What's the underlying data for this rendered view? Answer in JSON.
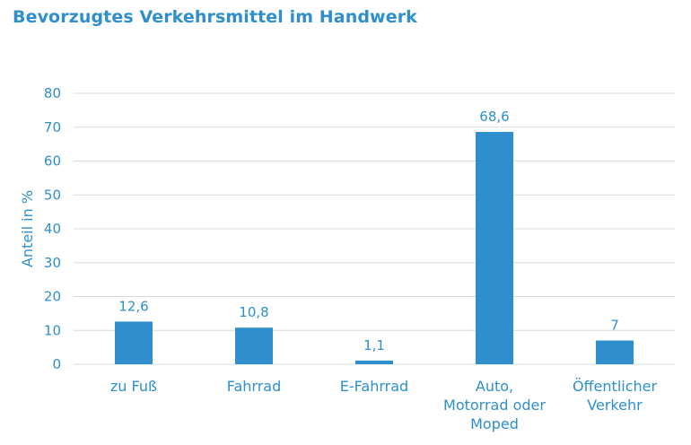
{
  "chart_data": {
    "type": "bar",
    "title": "Bevorzugtes Verkehrsmittel im Handwerk",
    "xlabel": "",
    "ylabel": "Anteil in %",
    "categories": [
      [
        "zu Fuß"
      ],
      [
        "Fahrrad"
      ],
      [
        "E-Fahrrad"
      ],
      [
        "Auto,",
        "Motorrad oder",
        "Moped"
      ],
      [
        "Öffentlicher",
        "Verkehr"
      ]
    ],
    "values": [
      12.6,
      10.8,
      1.1,
      68.6,
      7
    ],
    "value_labels": [
      "12,6",
      "10,8",
      "1,1",
      "68,6",
      "7"
    ],
    "y_ticks": [
      0,
      10,
      20,
      30,
      40,
      50,
      60,
      70,
      80
    ],
    "ylim": [
      0,
      80
    ],
    "grid": true,
    "legend": "none",
    "colors": {
      "bar": "#2e8fcc",
      "text": "#2e8fcc",
      "grid": "#d9d9d9",
      "title": "#2e8fcc"
    }
  }
}
